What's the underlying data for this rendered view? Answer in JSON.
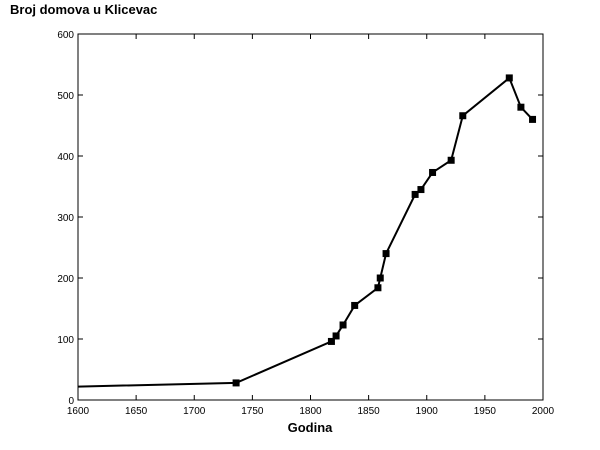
{
  "chart_data": {
    "type": "line",
    "title": "Broj domova u Klicevac",
    "xlabel": "Godina",
    "ylabel": "",
    "xlim": [
      1600,
      2000
    ],
    "ylim": [
      0,
      600
    ],
    "xticks": [
      1600,
      1650,
      1700,
      1750,
      1800,
      1850,
      1900,
      1950,
      2000
    ],
    "yticks": [
      0,
      100,
      200,
      300,
      400,
      500,
      600
    ],
    "grid": false,
    "legend": "none",
    "series": [
      {
        "name": "",
        "color": "#000000",
        "marker": "square",
        "points": [
          {
            "x": 1600,
            "y": 22
          },
          {
            "x": 1736,
            "y": 28
          },
          {
            "x": 1818,
            "y": 96
          },
          {
            "x": 1822,
            "y": 105
          },
          {
            "x": 1828,
            "y": 123
          },
          {
            "x": 1838,
            "y": 155
          },
          {
            "x": 1858,
            "y": 184
          },
          {
            "x": 1860,
            "y": 200
          },
          {
            "x": 1865,
            "y": 240
          },
          {
            "x": 1890,
            "y": 337
          },
          {
            "x": 1895,
            "y": 345
          },
          {
            "x": 1905,
            "y": 373
          },
          {
            "x": 1921,
            "y": 393
          },
          {
            "x": 1931,
            "y": 466
          },
          {
            "x": 1971,
            "y": 528
          },
          {
            "x": 1981,
            "y": 480
          },
          {
            "x": 1991,
            "y": 460
          }
        ]
      }
    ]
  }
}
